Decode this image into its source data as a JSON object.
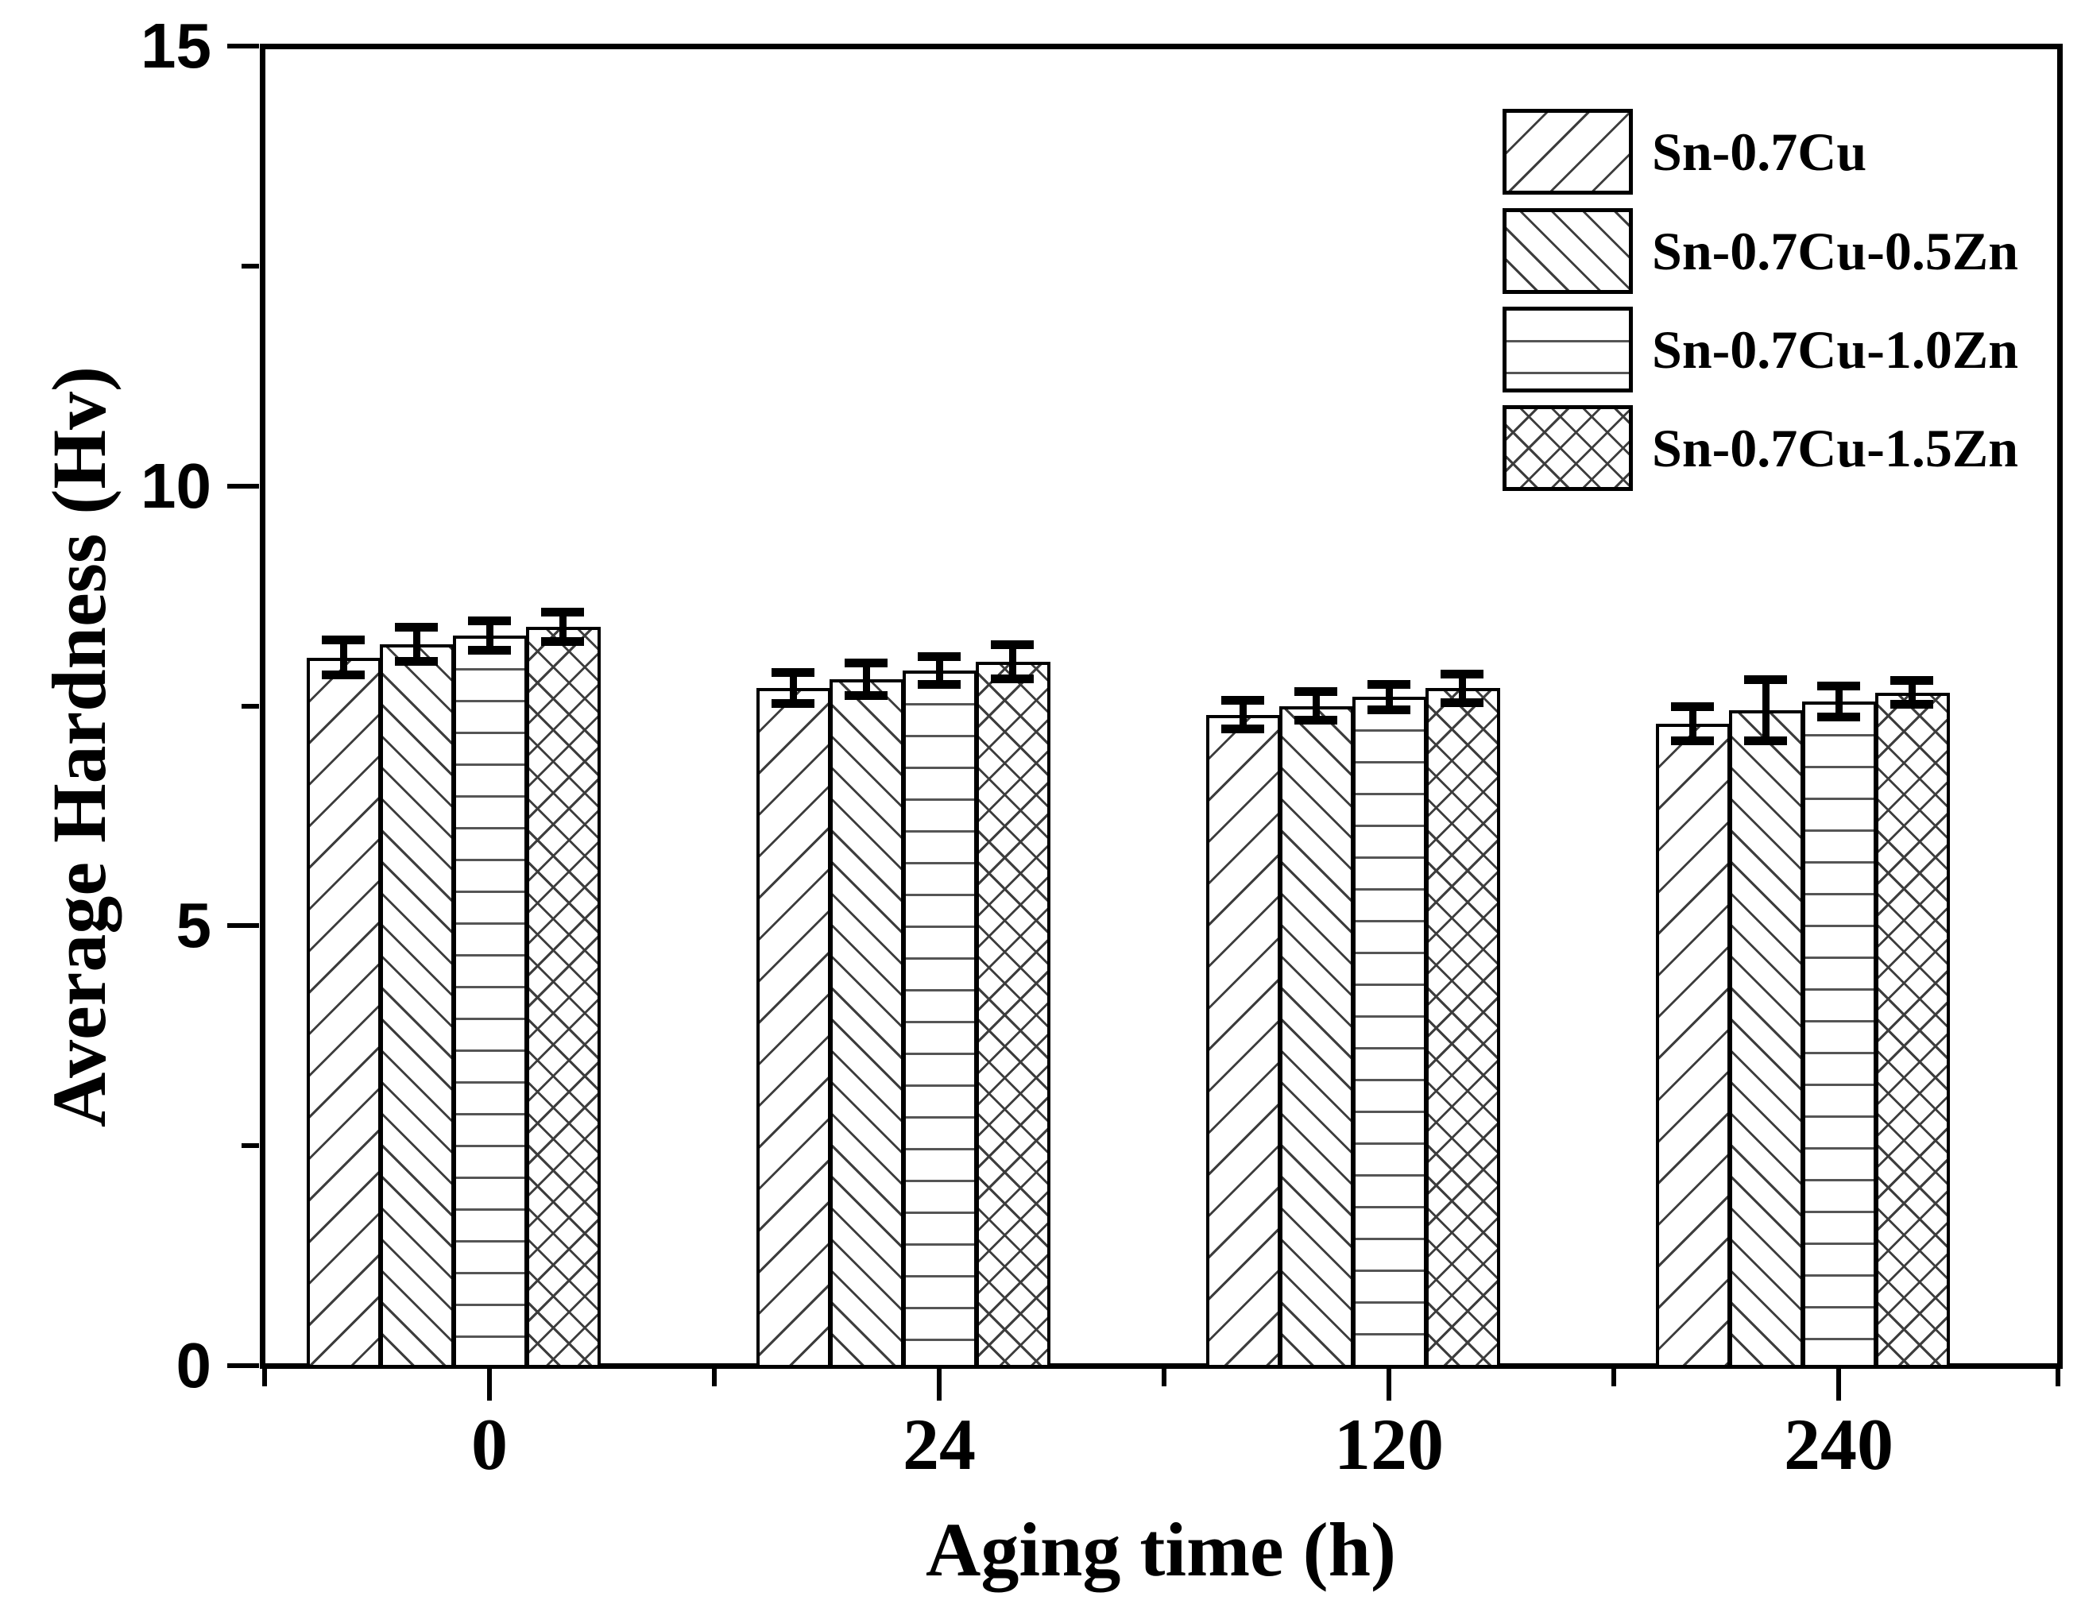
{
  "chart_data": {
    "type": "bar",
    "title": "",
    "xlabel": "Aging time (h)",
    "ylabel": "Average Hardness (Hv)",
    "categories": [
      "0",
      "24",
      "120",
      "240"
    ],
    "series": [
      {
        "name": "Sn-0.7Cu",
        "hatch": "diagonal-up",
        "values": [
          8.05,
          7.7,
          7.4,
          7.3
        ],
        "errors": [
          0.2,
          0.18,
          0.17,
          0.2
        ]
      },
      {
        "name": "Sn-0.7Cu-0.5Zn",
        "hatch": "diagonal-down",
        "values": [
          8.2,
          7.8,
          7.5,
          7.45
        ],
        "errors": [
          0.2,
          0.19,
          0.17,
          0.35
        ]
      },
      {
        "name": "Sn-0.7Cu-1.0Zn",
        "hatch": "horizontal",
        "values": [
          8.3,
          7.9,
          7.6,
          7.55
        ],
        "errors": [
          0.17,
          0.16,
          0.15,
          0.18
        ]
      },
      {
        "name": "Sn-0.7Cu-1.5Zn",
        "hatch": "crosshatch",
        "values": [
          8.4,
          8.0,
          7.7,
          7.65
        ],
        "errors": [
          0.17,
          0.2,
          0.17,
          0.14
        ]
      }
    ],
    "ylim": [
      0,
      15
    ],
    "yticks": [
      0,
      5,
      10,
      15
    ],
    "y_minor_tick_step": 2.5,
    "bar_fill": "#ffffff",
    "bar_edge_color": "#000000",
    "hatch_color": "#3d3d3d",
    "error_bar_color": "#000000",
    "legend_position": "top-right",
    "grid": false,
    "frame": "full-box"
  }
}
